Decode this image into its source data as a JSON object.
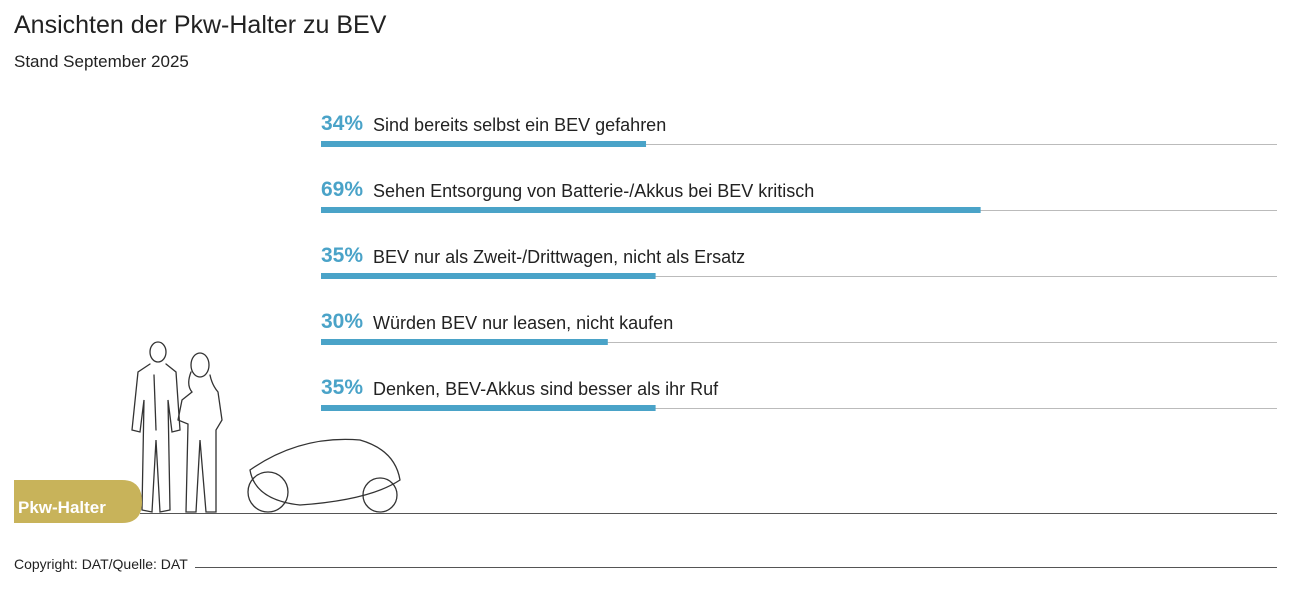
{
  "chart_data": {
    "type": "bar",
    "title": "Ansichten der Pkw-Halter zu BEV",
    "subtitle": "Stand September 2025",
    "categories": [
      "Sind bereits selbst ein BEV gefahren",
      "Sehen Entsorgung von Batterie-/Akkus bei BEV kritisch",
      "BEV nur als Zweit-/Drittwagen, nicht als Ersatz",
      "Würden BEV nur leasen, nicht kaufen",
      "Denken, BEV-Akkus sind besser als ihr Ruf"
    ],
    "values": [
      34,
      69,
      35,
      30,
      35
    ],
    "value_labels": [
      "34%",
      "69%",
      "35%",
      "30%",
      "35%"
    ],
    "xlim": [
      0,
      100
    ],
    "color": "#4aa3c8",
    "annotation": "Pkw-Halter",
    "source": "Copyright: DAT/Quelle: DAT"
  }
}
